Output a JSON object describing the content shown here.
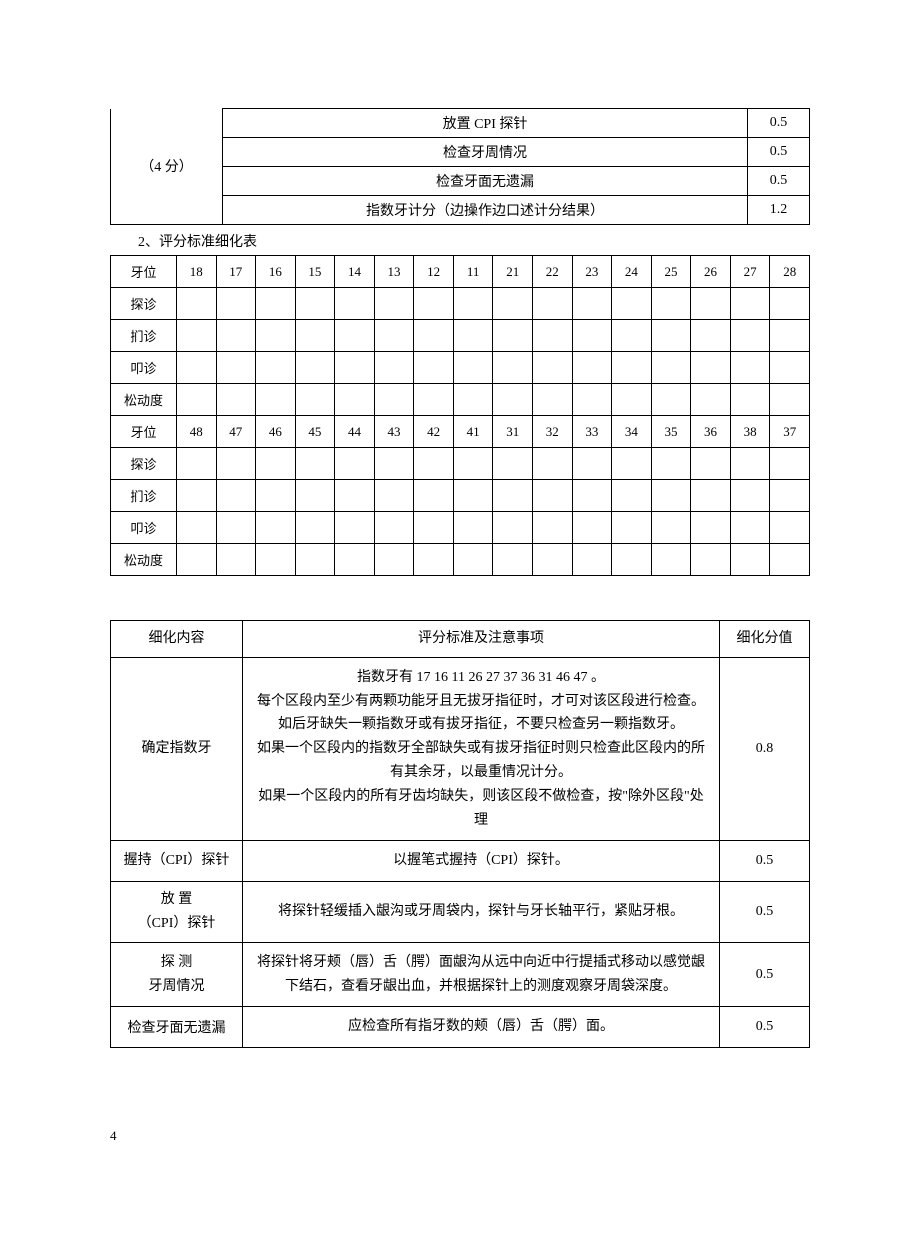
{
  "table1": {
    "left_label": "（4 分）",
    "rows": [
      {
        "desc": "放置 CPI 探针",
        "score": "0.5"
      },
      {
        "desc": "检查牙周情况",
        "score": "0.5"
      },
      {
        "desc": "检查牙面无遗漏",
        "score": "0.5"
      },
      {
        "desc": "指数牙计分（边操作边口述计分结果）",
        "score": "1.2"
      }
    ]
  },
  "section_heading": "2、评分标准细化表",
  "table2": {
    "row_labels_upper": [
      "牙位",
      "探诊",
      "扪诊",
      "叩诊",
      "松动度"
    ],
    "top_numbers": [
      "18",
      "17",
      "16",
      "15",
      "14",
      "13",
      "12",
      "11",
      "21",
      "22",
      "23",
      "24",
      "25",
      "26",
      "27",
      "28"
    ],
    "row_labels_lower": [
      "牙位",
      "探诊",
      "扪诊",
      "叩诊",
      "松动度"
    ],
    "bottom_numbers": [
      "48",
      "47",
      "46",
      "45",
      "44",
      "43",
      "42",
      "41",
      "31",
      "32",
      "33",
      "34",
      "35",
      "36",
      "38",
      "37"
    ]
  },
  "table3": {
    "headers": {
      "c1": "细化内容",
      "c2": "评分标准及注意事项",
      "c3": "细化分值"
    },
    "rows": [
      {
        "c1": "确定指数牙",
        "c2": "指数牙有 17 16 11 26 27 37 36 31 46 47 。\n每个区段内至少有两颗功能牙且无拔牙指征时，才可对该区段进行检查。\n如后牙缺失一颗指数牙或有拔牙指征，不要只检查另一颗指数牙。\n如果一个区段内的指数牙全部缺失或有拔牙指征时则只检查此区段内的所有其余牙，以最重情况计分。\n如果一个区段内的所有牙齿均缺失，则该区段不做检查，按\"除外区段\"处理",
        "c3": "0.8"
      },
      {
        "c1": "握持（CPI）探针",
        "c2": "以握笔式握持（CPI）探针。",
        "c3": "0.5"
      },
      {
        "c1": "放 置\n（CPI）探针",
        "c2": "将探针轻缓插入龈沟或牙周袋内，探针与牙长轴平行，紧贴牙根。",
        "c3": "0.5"
      },
      {
        "c1": "探 测\n牙周情况",
        "c2": "将探针将牙颊（唇）舌（腭）面龈沟从远中向近中行提插式移动以感觉龈下结石，查看牙龈出血，并根据探针上的测度观察牙周袋深度。",
        "c3": "0.5"
      },
      {
        "c1": "检查牙面无遗漏",
        "c2": "应检查所有指牙数的颊（唇）舌（腭）面。",
        "c3": "0.5",
        "c1_valign": "bottom"
      }
    ]
  },
  "page_number": "4"
}
